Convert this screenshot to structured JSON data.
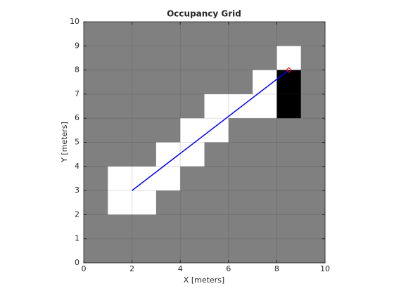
{
  "chart_data": {
    "type": "heatmap",
    "title": "Occupancy Grid",
    "xlabel": "X [meters]",
    "ylabel": "Y [meters]",
    "xlim": [
      0,
      10
    ],
    "ylim": [
      0,
      10
    ],
    "xticks": [
      0,
      2,
      4,
      6,
      8,
      10
    ],
    "yticks": [
      0,
      1,
      2,
      3,
      4,
      5,
      6,
      7,
      8,
      9,
      10
    ],
    "grid": true,
    "colormap": "gray-inverted",
    "z": [
      [
        0.5,
        0.5,
        0.5,
        0.5,
        0.5,
        0.5,
        0.5,
        0.5,
        0.5,
        0.5
      ],
      [
        0.5,
        0.5,
        0.5,
        0.5,
        0.5,
        0.5,
        0.5,
        0.5,
        0,
        0.5
      ],
      [
        0.5,
        0.5,
        0.5,
        0.5,
        0.5,
        0.5,
        0.5,
        0,
        1,
        0.5
      ],
      [
        0.5,
        0.5,
        0.5,
        0.5,
        0.5,
        0,
        0,
        0,
        1,
        0.5
      ],
      [
        0.5,
        0.5,
        0.5,
        0.5,
        0,
        0,
        0.5,
        0.5,
        0.5,
        0.5
      ],
      [
        0.5,
        0.5,
        0.5,
        0,
        0,
        0.5,
        0.5,
        0.5,
        0.5,
        0.5
      ],
      [
        0.5,
        0,
        0,
        0,
        0.5,
        0.5,
        0.5,
        0.5,
        0.5,
        0.5
      ],
      [
        0.5,
        0,
        0,
        0.5,
        0.5,
        0.5,
        0.5,
        0.5,
        0.5,
        0.5
      ],
      [
        0.5,
        0.5,
        0.5,
        0.5,
        0.5,
        0.5,
        0.5,
        0.5,
        0.5,
        0.5
      ],
      [
        0.5,
        0.5,
        0.5,
        0.5,
        0.5,
        0.5,
        0.5,
        0.5,
        0.5,
        0.5
      ]
    ],
    "series": [
      {
        "x": [
          2,
          8.5
        ],
        "y": [
          3,
          8
        ],
        "color": "#0000ff"
      }
    ],
    "endpoint": {
      "x": 8.5,
      "y": 8,
      "color": "#ff0000"
    }
  }
}
